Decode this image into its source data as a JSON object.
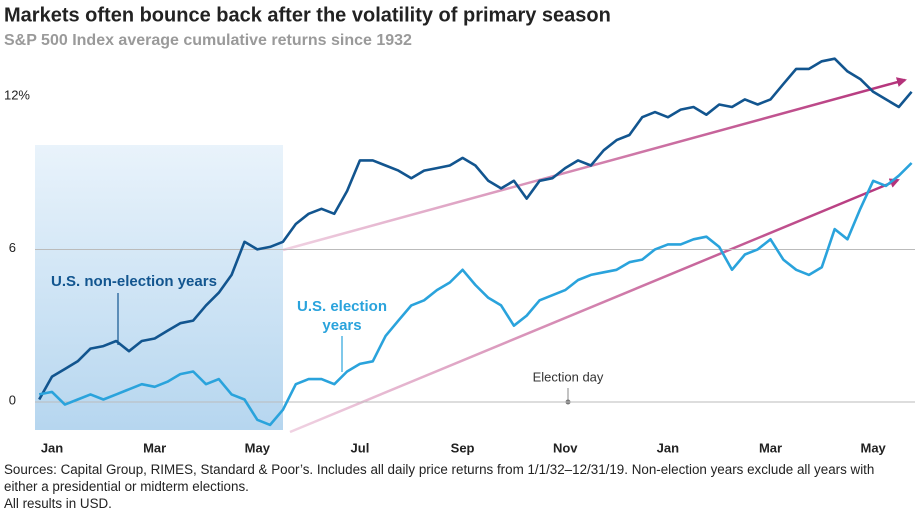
{
  "chart_data": {
    "type": "line",
    "title": "Markets often bounce back after the volatility of primary season",
    "subtitle": "S&P 500 Index average cumulative returns since 1932",
    "categories": [
      null,
      "Jan",
      null,
      null,
      null,
      null,
      null,
      null,
      null,
      "Mar",
      null,
      null,
      null,
      null,
      null,
      null,
      null,
      "May",
      null,
      null,
      null,
      null,
      null,
      null,
      null,
      "Jul",
      null,
      null,
      null,
      null,
      null,
      null,
      null,
      "Sep",
      null,
      null,
      null,
      null,
      null,
      null,
      null,
      "Nov",
      null,
      null,
      null,
      null,
      null,
      null,
      null,
      "Jan",
      null,
      null,
      null,
      null,
      null,
      null,
      null,
      "Mar",
      null,
      null,
      null,
      null,
      null,
      null,
      null,
      "May",
      null,
      null,
      null
    ],
    "series": [
      {
        "name": "U.S. non-election years",
        "color": "#12558f",
        "values": [
          0.1,
          1.0,
          1.3,
          1.6,
          2.1,
          2.2,
          2.4,
          2.0,
          2.4,
          2.5,
          2.8,
          3.1,
          3.2,
          3.8,
          4.3,
          5.0,
          6.3,
          6.0,
          6.1,
          6.3,
          7.0,
          7.4,
          7.6,
          7.4,
          8.3,
          9.5,
          9.5,
          9.3,
          9.1,
          8.8,
          9.1,
          9.2,
          9.3,
          9.6,
          9.3,
          8.7,
          8.4,
          8.7,
          8.0,
          8.7,
          8.8,
          9.2,
          9.5,
          9.3,
          9.9,
          10.3,
          10.5,
          11.2,
          11.4,
          11.2,
          11.5,
          11.6,
          11.3,
          11.7,
          11.6,
          11.9,
          11.7,
          11.9,
          12.5,
          13.1,
          13.1,
          13.4,
          13.5,
          13.0,
          12.7,
          12.2,
          11.9,
          11.6,
          12.2
        ]
      },
      {
        "name": "U.S. election years",
        "color": "#2aa3dc",
        "values": [
          0.3,
          0.4,
          -0.1,
          0.1,
          0.3,
          0.1,
          0.3,
          0.5,
          0.7,
          0.6,
          0.8,
          1.1,
          1.2,
          0.7,
          0.9,
          0.3,
          0.1,
          -0.7,
          -0.9,
          -0.3,
          0.7,
          0.9,
          0.9,
          0.7,
          1.2,
          1.5,
          1.6,
          2.6,
          3.2,
          3.8,
          4.0,
          4.4,
          4.7,
          5.2,
          4.6,
          4.1,
          3.8,
          3.0,
          3.4,
          4.0,
          4.2,
          4.4,
          4.8,
          5.0,
          5.1,
          5.2,
          5.5,
          5.6,
          6.0,
          6.2,
          6.2,
          6.4,
          6.5,
          6.1,
          5.2,
          5.8,
          6.0,
          6.4,
          5.6,
          5.2,
          5.0,
          5.3,
          6.8,
          6.4,
          7.6,
          8.7,
          8.5,
          8.9,
          9.4
        ]
      }
    ],
    "ylim": [
      -1.1,
      14
    ],
    "yticks": [
      0,
      6,
      {
        "value": 12,
        "label": "12%"
      }
    ],
    "annotation": "Election day",
    "source": "Sources: Capital Group, RIMES, Standard & Poor’s. Includes all daily price returns from 1/1/32–12/31/19. Non-election years exclude all years with either a presidential or midterm elections.",
    "note": "All results in USD."
  }
}
